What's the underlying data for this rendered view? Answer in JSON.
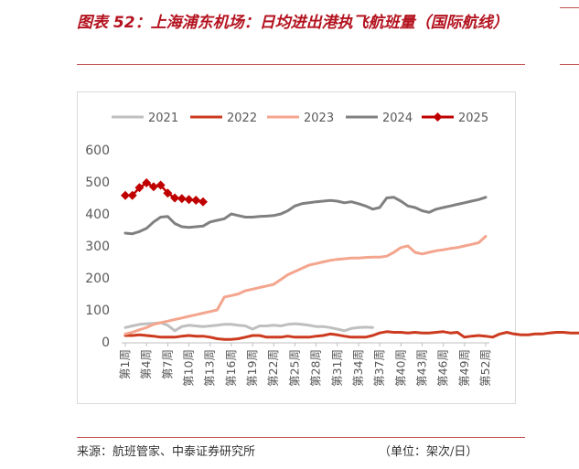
{
  "title": "图表 52：上海浦东机场：日均进出港执飞航班量（国际航线）",
  "source": "来源：航班管家、中泰证券研究所",
  "unit": "（单位：架次/日）",
  "chart_data": {
    "type": "line",
    "title": "",
    "xlabel": "",
    "ylabel": "",
    "ylim": [
      0,
      600
    ],
    "yticks": [
      "0",
      "100",
      "200",
      "300",
      "400",
      "500",
      "600"
    ],
    "x_tick_labels": [
      "第1周",
      "第4周",
      "第7周",
      "第10周",
      "第13周",
      "第16周",
      "第19周",
      "第22周",
      "第25周",
      "第28周",
      "第31周",
      "第34周",
      "第37周",
      "第40周",
      "第43周",
      "第46周",
      "第49周",
      "第52周"
    ],
    "legend_position": "top",
    "grid": false,
    "series": [
      {
        "name": "2021",
        "color": "#bfbfbf",
        "marker": "none",
        "values": [
          45,
          50,
          55,
          57,
          58,
          60,
          52,
          35,
          48,
          52,
          50,
          48,
          50,
          52,
          55,
          55,
          52,
          50,
          40,
          50,
          50,
          52,
          50,
          55,
          57,
          55,
          52,
          48,
          48,
          45,
          40,
          35,
          42,
          45,
          46,
          45
        ]
      },
      {
        "name": "2022",
        "color": "#cc3b1f",
        "marker": "none",
        "values": [
          20,
          20,
          22,
          20,
          18,
          15,
          15,
          15,
          18,
          20,
          18,
          18,
          15,
          10,
          8,
          8,
          10,
          15,
          20,
          20,
          15,
          15,
          15,
          18,
          15,
          15,
          15,
          18,
          20,
          25,
          22,
          18,
          15,
          15,
          15,
          20,
          28,
          32,
          30,
          30,
          28,
          30,
          28,
          28,
          30,
          32,
          28,
          30,
          15,
          18,
          20,
          18,
          15,
          25,
          30,
          25,
          22,
          22,
          25,
          25,
          28,
          30,
          30,
          28,
          28,
          27
        ]
      },
      {
        "name": "2023",
        "color": "#f4a58e",
        "marker": "none",
        "values": [
          25,
          30,
          38,
          45,
          55,
          60,
          65,
          70,
          75,
          80,
          85,
          90,
          95,
          100,
          140,
          145,
          150,
          160,
          165,
          170,
          175,
          180,
          195,
          210,
          220,
          230,
          240,
          245,
          250,
          255,
          258,
          260,
          262,
          262,
          264,
          265,
          265,
          268,
          280,
          295,
          300,
          280,
          275,
          280,
          285,
          288,
          292,
          295,
          300,
          305,
          310,
          330
        ]
      },
      {
        "name": "2024",
        "color": "#808080",
        "marker": "none",
        "values": [
          340,
          338,
          345,
          355,
          375,
          390,
          392,
          370,
          360,
          358,
          360,
          362,
          375,
          380,
          385,
          400,
          395,
          390,
          390,
          392,
          393,
          395,
          400,
          410,
          425,
          432,
          435,
          438,
          440,
          442,
          440,
          435,
          438,
          432,
          425,
          415,
          420,
          450,
          452,
          440,
          425,
          420,
          410,
          405,
          415,
          420,
          425,
          430,
          435,
          440,
          445,
          452
        ]
      },
      {
        "name": "2025",
        "color": "#c00000",
        "marker": "diamond",
        "values": [
          458,
          458,
          482,
          497,
          485,
          490,
          465,
          450,
          448,
          445,
          443,
          438
        ]
      }
    ]
  }
}
